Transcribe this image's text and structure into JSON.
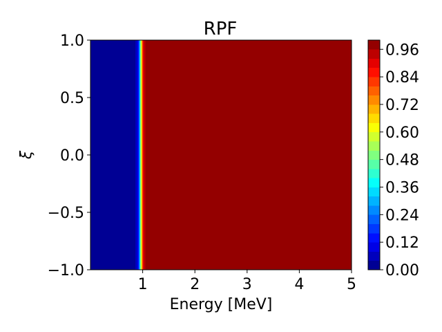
{
  "chart_data": {
    "type": "heatmap",
    "title": "RPF",
    "xlabel": "Energy [MeV]",
    "ylabel": "ξ",
    "xlim": [
      0.0,
      5.0
    ],
    "ylim": [
      -1.0,
      1.0
    ],
    "x_ticks": [
      1,
      2,
      3,
      4,
      5
    ],
    "x_tick_labels": [
      "1",
      "2",
      "3",
      "4",
      "5"
    ],
    "y_ticks": [
      -1.0,
      -0.5,
      0.0,
      0.5,
      1.0
    ],
    "y_tick_labels": [
      "−1.0",
      "−0.5",
      "0.0",
      "0.5",
      "1.0"
    ],
    "colormap": "jet",
    "colorbar": {
      "range": [
        0.0,
        1.0
      ],
      "ticks": [
        0.0,
        0.12,
        0.24,
        0.36,
        0.48,
        0.6,
        0.72,
        0.84,
        0.96
      ],
      "tick_labels": [
        "0.00",
        "0.12",
        "0.24",
        "0.36",
        "0.48",
        "0.60",
        "0.72",
        "0.84",
        "0.96"
      ],
      "levels": 25
    },
    "data_description": "value independent of ξ; ≈0 below ~0.9 MeV, rising sharply to ≈1 at ~1.0 MeV and above",
    "profile": {
      "x": [
        0.0,
        0.85,
        0.9,
        0.93,
        0.95,
        0.97,
        0.99,
        1.01,
        1.03,
        1.06,
        1.1,
        5.0
      ],
      "value": [
        0.0,
        0.02,
        0.1,
        0.2,
        0.4,
        0.6,
        0.75,
        0.88,
        0.94,
        0.97,
        1.0,
        1.0
      ]
    }
  }
}
